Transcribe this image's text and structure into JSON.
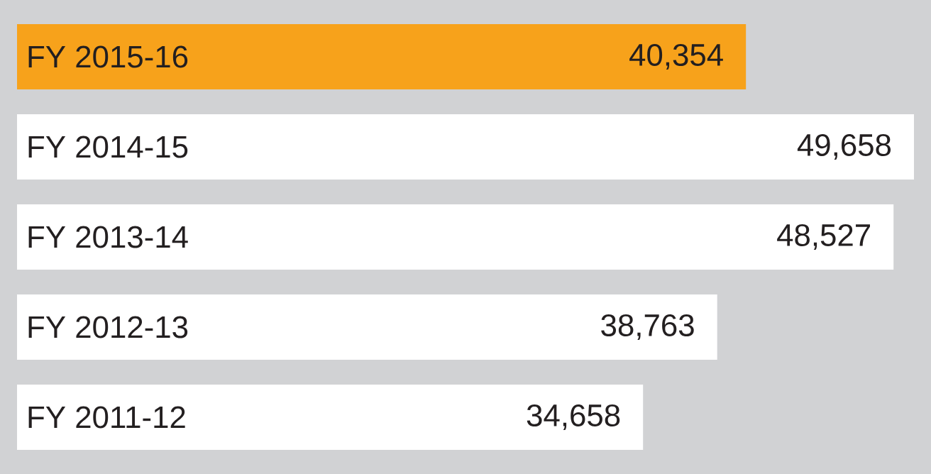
{
  "chart_data": {
    "type": "bar",
    "orientation": "horizontal",
    "value_labels": [
      "40,354",
      "49,658",
      "48,527",
      "38,763",
      "34,658"
    ],
    "categories": [
      "FY 2015-16",
      "FY 2014-15",
      "FY 2013-14",
      "FY 2012-13",
      "FY 2011-12"
    ],
    "values": [
      40354,
      49658,
      48527,
      38763,
      34658
    ],
    "colors": [
      "#f7a21b",
      "#ffffff",
      "#ffffff",
      "#ffffff",
      "#ffffff"
    ]
  }
}
